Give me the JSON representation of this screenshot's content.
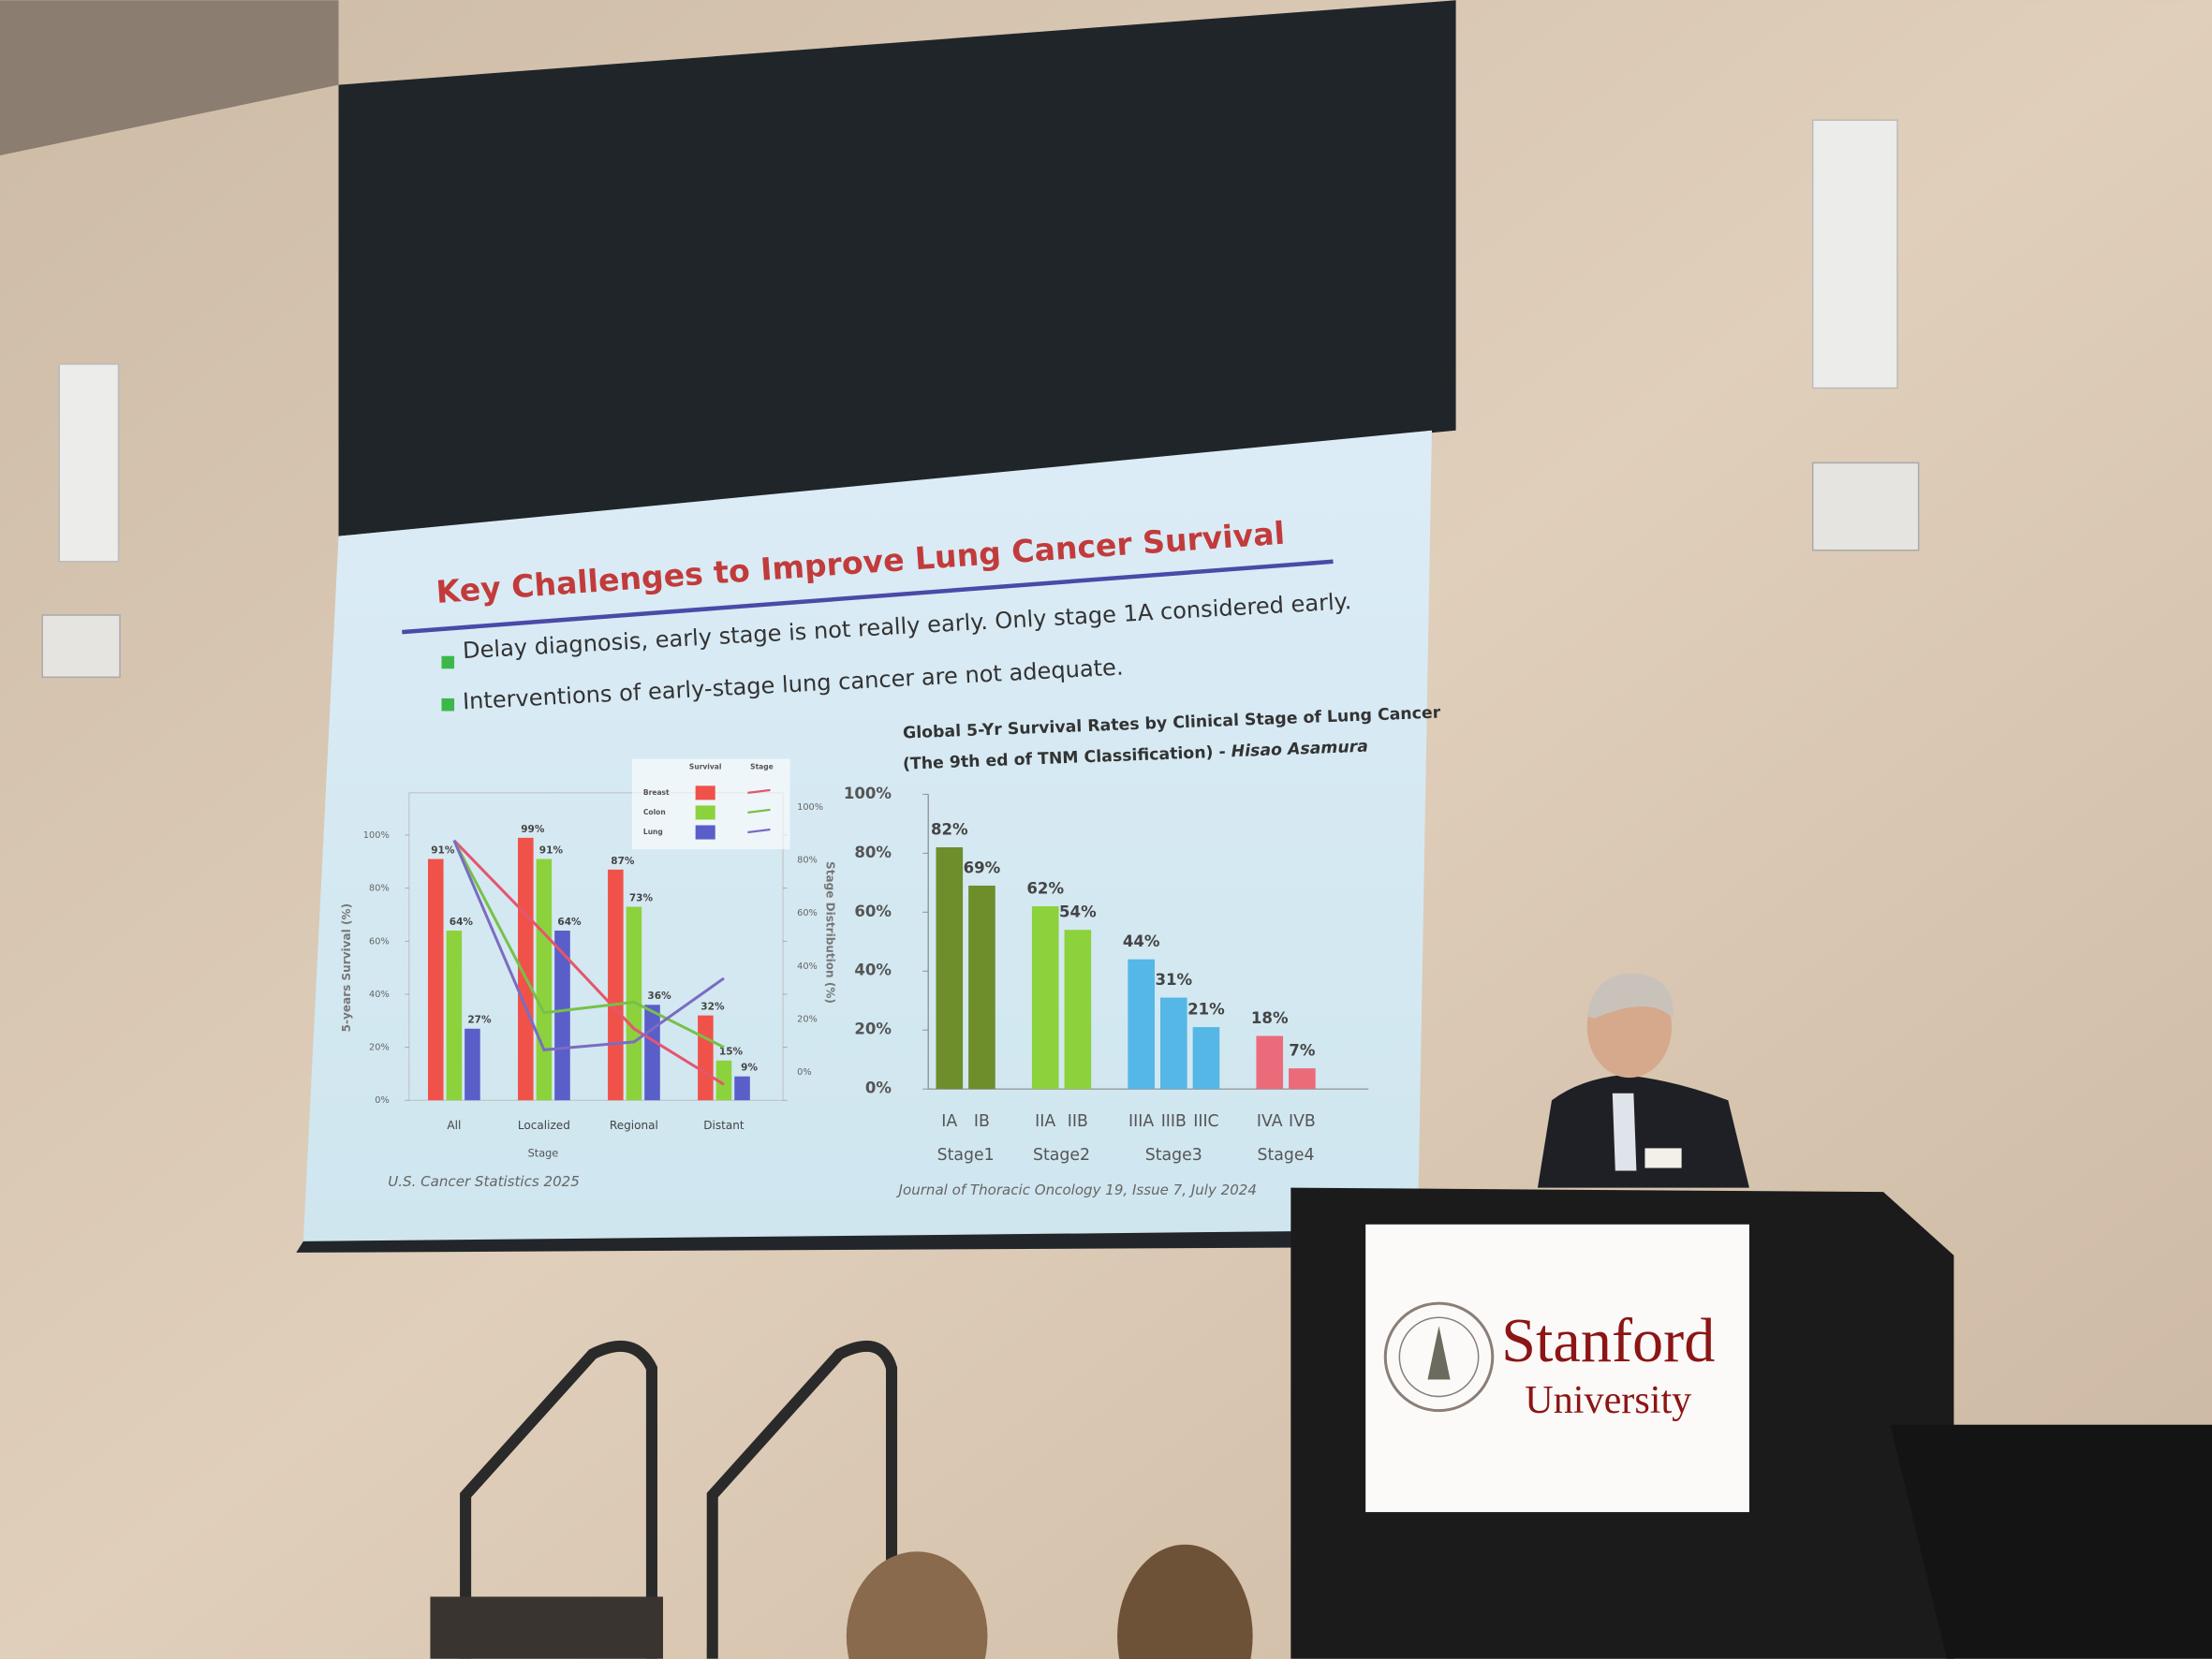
{
  "slide": {
    "title": "Key Challenges to Improve Lung Cancer Survival",
    "bullets": [
      "Delay diagnosis, early stage is not really early. Only stage 1A considered early.",
      "Interventions of early-stage lung cancer are not adequate."
    ]
  },
  "chart_data": [
    {
      "type": "bar",
      "categories": [
        "All",
        "Localized",
        "Regional",
        "Distant"
      ],
      "x_label": "Stage",
      "y_label": "5-years Survival (%)",
      "y2_label": "Stage Distribution (%)",
      "legend_headers": [
        "Survival",
        "Stage"
      ],
      "series": [
        {
          "name": "Breast",
          "color": "#f0524a",
          "values": [
            91,
            99,
            87,
            32
          ],
          "value_labels": [
            "91%",
            "99%",
            "87%",
            "32%"
          ],
          "line_color": "#e4566e",
          "stage_values": [
            98,
            63,
            27,
            6
          ],
          "axis_line": "y2"
        },
        {
          "name": "Colon",
          "color": "#8cd23c",
          "values": [
            64,
            91,
            73,
            15
          ],
          "value_labels": [
            "64%",
            "91%",
            "73%",
            "15%"
          ],
          "line_color": "#78c04a",
          "stage_values": [
            98,
            33,
            37,
            20
          ],
          "axis_line": "y2"
        },
        {
          "name": "Lung",
          "color": "#5a5ec8",
          "values": [
            27,
            64,
            36,
            9
          ],
          "value_labels": [
            "27%",
            "64%",
            "36%",
            "9%"
          ],
          "line_color": "#7a6cc2",
          "stage_values": [
            98,
            19,
            22,
            46
          ],
          "axis_line": "y2"
        }
      ],
      "ylim": [
        0,
        100
      ],
      "yticks": [
        {
          "value": 0,
          "label": "0%"
        },
        {
          "value": 20,
          "label": "20%"
        },
        {
          "value": 40,
          "label": "40%"
        },
        {
          "value": 60,
          "label": "60%"
        },
        {
          "value": 80,
          "label": "80%"
        },
        {
          "value": 100,
          "label": "100%"
        }
      ],
      "y2lim": [
        0,
        100
      ],
      "y2ticks": [
        {
          "value": 0,
          "label": "0%"
        },
        {
          "value": 20,
          "label": "20%"
        },
        {
          "value": 40,
          "label": "40%"
        },
        {
          "value": 60,
          "label": "60%"
        },
        {
          "value": 80,
          "label": "80%"
        },
        {
          "value": 100,
          "label": "100%"
        }
      ],
      "source": "U.S. Cancer Statistics 2025"
    },
    {
      "type": "bar",
      "title": "Global 5-Yr Survival Rates by Clinical Stage of Lung Cancer",
      "subtitle": "(The 9th ed of TNM Classification) - ",
      "author": "Hisao Asamura",
      "series": [
        {
          "name": "Stage1",
          "color": "#6e8e2c",
          "categories": [
            "IA",
            "IB"
          ],
          "values": [
            82,
            69
          ],
          "value_labels": [
            "82%",
            "69%"
          ]
        },
        {
          "name": "Stage2",
          "color": "#8cd23c",
          "categories": [
            "IIA",
            "IIB"
          ],
          "values": [
            62,
            54
          ],
          "value_labels": [
            "62%",
            "54%"
          ]
        },
        {
          "name": "Stage3",
          "color": "#55b7e6",
          "categories": [
            "IIIA",
            "IIIB",
            "IIIC"
          ],
          "values": [
            44,
            31,
            21
          ],
          "value_labels": [
            "44%",
            "31%",
            "21%"
          ]
        },
        {
          "name": "Stage4",
          "color": "#ec6b7a",
          "categories": [
            "IVA",
            "IVB"
          ],
          "values": [
            18,
            7
          ],
          "value_labels": [
            "18%",
            "7%"
          ]
        }
      ],
      "ylim": [
        0,
        100
      ],
      "yticks": [
        {
          "value": 0,
          "label": "0%"
        },
        {
          "value": 20,
          "label": "20%"
        },
        {
          "value": 40,
          "label": "40%"
        },
        {
          "value": 60,
          "label": "60%"
        },
        {
          "value": 80,
          "label": "80%"
        },
        {
          "value": 100,
          "label": "100%"
        }
      ],
      "source": "Journal of Thoracic Oncology 19, Issue 7, July 2024"
    }
  ],
  "podium_sign": {
    "name": "Stanford",
    "subtitle": "University"
  }
}
